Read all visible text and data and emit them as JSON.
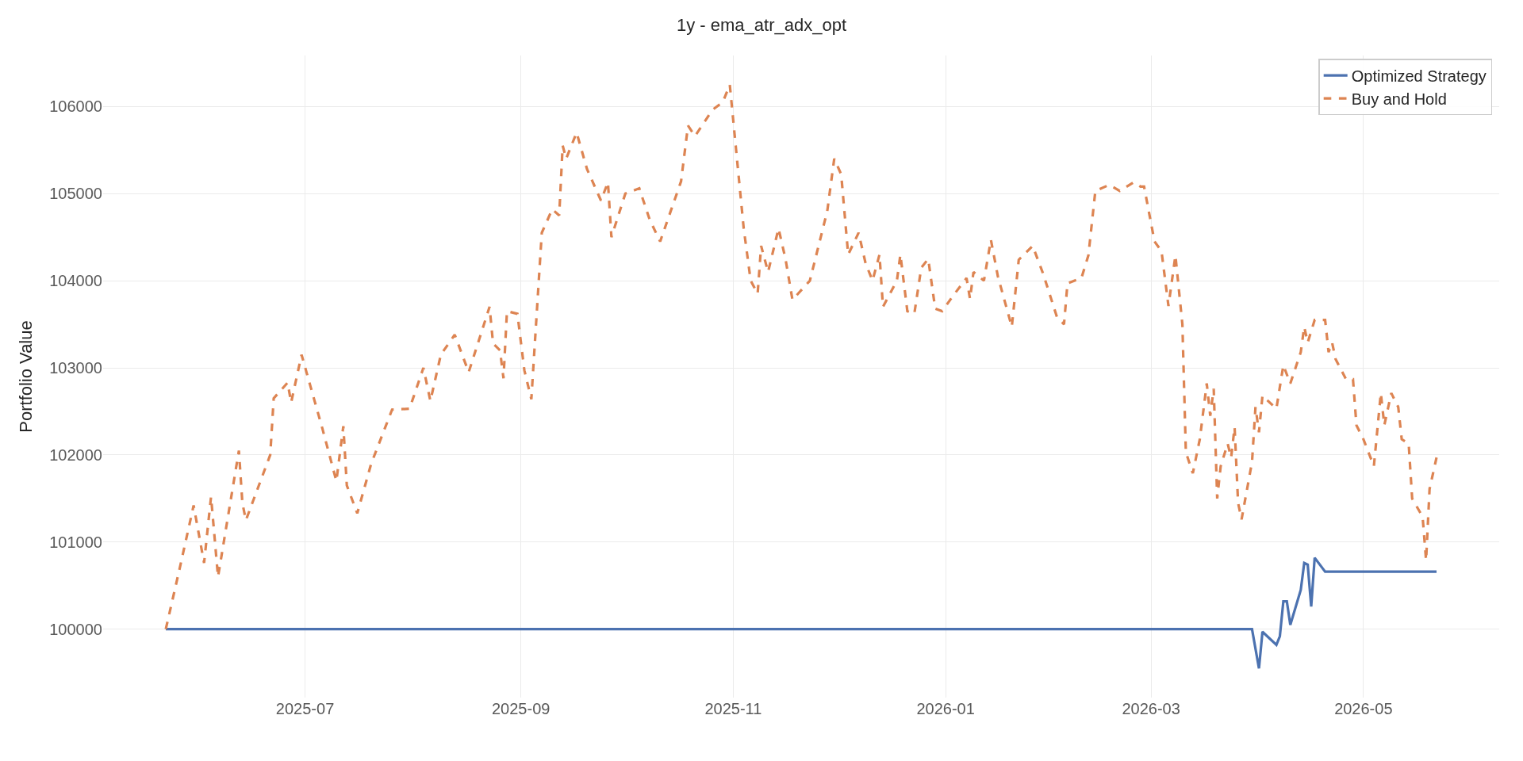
{
  "chart_data": {
    "type": "line",
    "title": "1y - ema_atr_adx_opt",
    "ylabel": "Portfolio Value",
    "xlim": [
      "2025-05-04",
      "2026-06-09"
    ],
    "ylim": [
      99215,
      106585
    ],
    "xticks": [
      {
        "value": "2025-07-01",
        "label": "2025-07"
      },
      {
        "value": "2025-09-01",
        "label": "2025-09"
      },
      {
        "value": "2025-11-01",
        "label": "2025-11"
      },
      {
        "value": "2026-01-01",
        "label": "2026-01"
      },
      {
        "value": "2026-03-01",
        "label": "2026-03"
      },
      {
        "value": "2026-05-01",
        "label": "2026-05"
      }
    ],
    "yticks": [
      100000,
      101000,
      102000,
      103000,
      104000,
      105000,
      106000
    ],
    "grid": true,
    "legend": "top right",
    "series": [
      {
        "name": "Optimized Strategy",
        "color": "#4c72b0",
        "line_style": "solid",
        "x": [
          "2025-05-22",
          "2026-03-30",
          "2026-04-01",
          "2026-04-02",
          "2026-04-06",
          "2026-04-07",
          "2026-04-08",
          "2026-04-09",
          "2026-04-10",
          "2026-04-13",
          "2026-04-14",
          "2026-04-15",
          "2026-04-16",
          "2026-04-17",
          "2026-04-20",
          "2026-05-22"
        ],
        "values": [
          100000,
          100000,
          99550,
          99970,
          99820,
          99920,
          100320,
          100320,
          100050,
          100450,
          100760,
          100740,
          100260,
          100820,
          100660,
          100660
        ]
      },
      {
        "name": "Buy and Hold",
        "color": "#dd8452",
        "line_style": "dashed",
        "x": [
          "2025-05-22",
          "2025-05-26",
          "2025-05-30",
          "2025-06-02",
          "2025-06-04",
          "2025-06-06",
          "2025-06-12",
          "2025-06-13",
          "2025-06-14",
          "2025-06-21",
          "2025-06-22",
          "2025-06-26",
          "2025-06-27",
          "2025-06-30",
          "2025-07-06",
          "2025-07-10",
          "2025-07-12",
          "2025-07-13",
          "2025-07-16",
          "2025-07-20",
          "2025-07-26",
          "2025-07-31",
          "2025-08-04",
          "2025-08-06",
          "2025-08-09",
          "2025-08-13",
          "2025-08-17",
          "2025-08-23",
          "2025-08-24",
          "2025-08-26",
          "2025-08-27",
          "2025-08-28",
          "2025-08-31",
          "2025-09-02",
          "2025-09-04",
          "2025-09-07",
          "2025-09-10",
          "2025-09-12",
          "2025-09-13",
          "2025-09-14",
          "2025-09-17",
          "2025-09-20",
          "2025-09-24",
          "2025-09-26",
          "2025-09-27",
          "2025-10-01",
          "2025-10-05",
          "2025-10-08",
          "2025-10-11",
          "2025-10-17",
          "2025-10-19",
          "2025-10-21",
          "2025-10-26",
          "2025-10-29",
          "2025-10-31",
          "2025-11-04",
          "2025-11-06",
          "2025-11-08",
          "2025-11-09",
          "2025-11-11",
          "2025-11-14",
          "2025-11-16",
          "2025-11-18",
          "2025-11-23",
          "2025-11-28",
          "2025-11-30",
          "2025-12-02",
          "2025-12-04",
          "2025-12-07",
          "2025-12-09",
          "2025-12-11",
          "2025-12-13",
          "2025-12-14",
          "2025-12-18",
          "2025-12-19",
          "2025-12-21",
          "2025-12-23",
          "2025-12-25",
          "2025-12-27",
          "2025-12-29",
          "2025-12-31",
          "2026-01-03",
          "2026-01-07",
          "2026-01-08",
          "2026-01-09",
          "2026-01-12",
          "2026-01-14",
          "2026-01-16",
          "2026-01-20",
          "2026-01-22",
          "2026-01-26",
          "2026-01-29",
          "2026-02-02",
          "2026-02-04",
          "2026-02-05",
          "2026-02-09",
          "2026-02-11",
          "2026-02-13",
          "2026-02-17",
          "2026-02-20",
          "2026-02-24",
          "2026-02-26",
          "2026-02-27",
          "2026-03-02",
          "2026-03-04",
          "2026-03-06",
          "2026-03-08",
          "2026-03-10",
          "2026-03-11",
          "2026-03-13",
          "2026-03-15",
          "2026-03-17",
          "2026-03-18",
          "2026-03-19",
          "2026-03-20",
          "2026-03-21",
          "2026-03-23",
          "2026-03-24",
          "2026-03-25",
          "2026-03-26",
          "2026-03-27",
          "2026-03-30",
          "2026-03-31",
          "2026-04-01",
          "2026-04-02",
          "2026-04-06",
          "2026-04-08",
          "2026-04-10",
          "2026-04-13",
          "2026-04-14",
          "2026-04-15",
          "2026-04-17",
          "2026-04-20",
          "2026-04-21",
          "2026-04-22",
          "2026-04-23",
          "2026-04-26",
          "2026-04-28",
          "2026-04-29",
          "2026-05-01",
          "2026-05-04",
          "2026-05-06",
          "2026-05-07",
          "2026-05-09",
          "2026-05-11",
          "2026-05-12",
          "2026-05-14",
          "2026-05-15",
          "2026-05-18",
          "2026-05-19",
          "2026-05-20",
          "2026-05-22"
        ],
        "values": [
          100000,
          100700,
          101420,
          100760,
          101520,
          100600,
          102050,
          101450,
          101250,
          102000,
          102650,
          102830,
          102600,
          103150,
          102300,
          101700,
          102330,
          101650,
          101330,
          101900,
          102520,
          102530,
          103000,
          102620,
          103150,
          103380,
          102950,
          103700,
          103280,
          103200,
          102880,
          103650,
          103620,
          102970,
          102640,
          104550,
          104820,
          104750,
          105550,
          105400,
          105700,
          105280,
          104920,
          105130,
          104500,
          105000,
          105060,
          104700,
          104450,
          105140,
          105780,
          105660,
          105960,
          106050,
          106250,
          104600,
          104000,
          103850,
          104400,
          104100,
          104600,
          104250,
          103780,
          104000,
          104800,
          105400,
          105220,
          104300,
          104550,
          104200,
          104000,
          104300,
          103700,
          104000,
          104300,
          103650,
          103620,
          104150,
          104250,
          103680,
          103650,
          103820,
          104030,
          103790,
          104100,
          104000,
          104470,
          104050,
          103470,
          104240,
          104400,
          104080,
          103580,
          103500,
          103970,
          104030,
          104290,
          105030,
          105100,
          105030,
          105130,
          105080,
          105080,
          104450,
          104340,
          103710,
          104290,
          103500,
          102030,
          101790,
          102180,
          102820,
          102450,
          102760,
          101500,
          101870,
          102130,
          101970,
          102320,
          101450,
          101260,
          101920,
          102550,
          102260,
          102680,
          102530,
          103030,
          102820,
          103180,
          103470,
          103290,
          103550,
          103550,
          103180,
          103290,
          103100,
          102870,
          102870,
          102340,
          102180,
          101870,
          102710,
          102340,
          102710,
          102550,
          102180,
          102130,
          101500,
          101290,
          100790,
          101610,
          101970
        ]
      }
    ]
  }
}
